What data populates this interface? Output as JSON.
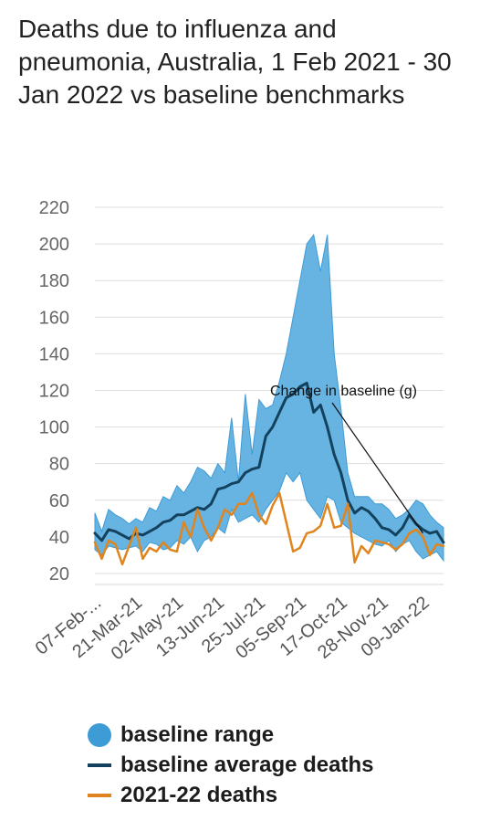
{
  "title": "Deaths due to influenza and pneumonia, Australia, 1 Feb 2021 - 30 Jan 2022 vs baseline benchmarks",
  "colors": {
    "range": "#5aaee0",
    "range_edge": "#3d9bd6",
    "baseline": "#14425e",
    "deaths": "#e0851e",
    "grid": "#dddddd"
  },
  "legend": [
    {
      "label": "baseline range",
      "kind": "area",
      "color": "#3d9bd6"
    },
    {
      "label": "baseline average deaths",
      "kind": "line",
      "color": "#14425e"
    },
    {
      "label": "2021-22 deaths",
      "kind": "line",
      "color": "#e0851e"
    }
  ],
  "chart_data": {
    "type": "line",
    "title": "Deaths due to influenza and pneumonia, Australia, 1 Feb 2021 - 30 Jan 2022 vs baseline benchmarks",
    "xlabel": "",
    "ylabel": "",
    "ylim": [
      14,
      220
    ],
    "yticks": [
      20,
      40,
      60,
      80,
      100,
      120,
      140,
      160,
      180,
      200,
      220
    ],
    "grid": true,
    "legend_position": "bottom",
    "xtick_labels": [
      {
        "label": "07-Feb-...",
        "index": 0
      },
      {
        "label": "21-Mar-21",
        "index": 6
      },
      {
        "label": "02-May-21",
        "index": 12
      },
      {
        "label": "13-Jun-21",
        "index": 18
      },
      {
        "label": "25-Jul-21",
        "index": 24
      },
      {
        "label": "05-Sep-21",
        "index": 30
      },
      {
        "label": "17-Oct-21",
        "index": 36
      },
      {
        "label": "28-Nov-21",
        "index": 42
      },
      {
        "label": "09-Jan-22",
        "index": 48
      }
    ],
    "x": [
      "07-Feb-21",
      "14-Feb-21",
      "21-Feb-21",
      "28-Feb-21",
      "07-Mar-21",
      "14-Mar-21",
      "21-Mar-21",
      "28-Mar-21",
      "04-Apr-21",
      "11-Apr-21",
      "18-Apr-21",
      "25-Apr-21",
      "02-May-21",
      "09-May-21",
      "16-May-21",
      "23-May-21",
      "30-May-21",
      "06-Jun-21",
      "13-Jun-21",
      "20-Jun-21",
      "27-Jun-21",
      "04-Jul-21",
      "11-Jul-21",
      "18-Jul-21",
      "25-Jul-21",
      "01-Aug-21",
      "08-Aug-21",
      "15-Aug-21",
      "22-Aug-21",
      "29-Aug-21",
      "05-Sep-21",
      "12-Sep-21",
      "19-Sep-21",
      "26-Sep-21",
      "03-Oct-21",
      "10-Oct-21",
      "17-Oct-21",
      "24-Oct-21",
      "31-Oct-21",
      "07-Nov-21",
      "14-Nov-21",
      "21-Nov-21",
      "28-Nov-21",
      "05-Dec-21",
      "12-Dec-21",
      "19-Dec-21",
      "26-Dec-21",
      "02-Jan-22",
      "09-Jan-22",
      "16-Jan-22",
      "23-Jan-22",
      "30-Jan-22"
    ],
    "series": [
      {
        "name": "baseline range",
        "kind": "band",
        "upper": [
          53,
          43,
          55,
          52,
          50,
          47,
          50,
          48,
          56,
          54,
          62,
          60,
          68,
          64,
          70,
          78,
          76,
          72,
          80,
          75,
          105,
          70,
          118,
          85,
          115,
          110,
          112,
          125,
          140,
          160,
          180,
          200,
          205,
          185,
          205,
          140,
          110,
          75,
          62,
          62,
          62,
          58,
          58,
          55,
          50,
          52,
          55,
          60,
          58,
          52,
          48,
          45
        ],
        "lower": [
          33,
          30,
          35,
          34,
          33,
          34,
          35,
          32,
          37,
          36,
          33,
          34,
          38,
          36,
          40,
          32,
          38,
          40,
          45,
          42,
          55,
          48,
          50,
          52,
          48,
          55,
          60,
          65,
          75,
          70,
          75,
          60,
          55,
          50,
          62,
          60,
          48,
          45,
          42,
          40,
          38,
          36,
          35,
          38,
          32,
          36,
          38,
          32,
          28,
          30,
          32,
          27
        ]
      },
      {
        "name": "baseline average deaths",
        "kind": "line",
        "values": [
          42,
          38,
          44,
          43,
          41,
          39,
          42,
          41,
          43,
          45,
          48,
          49,
          52,
          52,
          54,
          56,
          55,
          58,
          66,
          67,
          69,
          70,
          75,
          77,
          78,
          95,
          100,
          108,
          116,
          118,
          122,
          124,
          108,
          112,
          100,
          85,
          75,
          60,
          53,
          56,
          54,
          50,
          45,
          44,
          41,
          45,
          52,
          47,
          44,
          42,
          43,
          37
        ]
      },
      {
        "name": "2021-22 deaths",
        "kind": "line",
        "values": [
          37,
          28,
          38,
          36,
          25,
          35,
          45,
          28,
          34,
          32,
          37,
          33,
          32,
          48,
          40,
          55,
          45,
          38,
          45,
          55,
          52,
          58,
          58,
          64,
          52,
          47,
          57,
          64,
          48,
          32,
          34,
          42,
          43,
          46,
          58,
          45,
          46,
          58,
          26,
          35,
          31,
          38,
          37,
          36,
          33,
          36,
          42,
          44,
          40,
          30,
          36,
          35
        ]
      }
    ],
    "annotations": [
      {
        "text": "Change in baseline (g)",
        "points_to_index": 48
      }
    ]
  }
}
